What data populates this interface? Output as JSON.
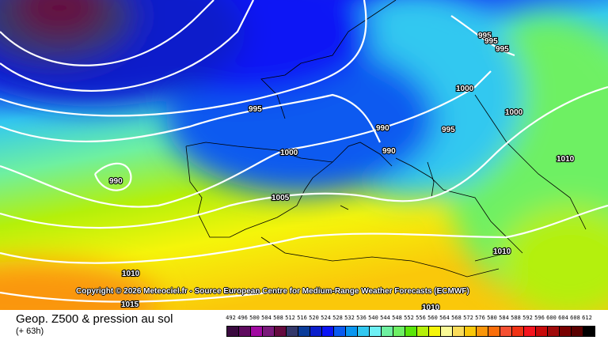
{
  "map": {
    "copyright": "Copyright © 2026 Meteociel.fr - Source European Centre for Medium-Range Weather Forecasts (ECMWF)",
    "isobar_labels": [
      "995",
      "1000",
      "990",
      "1005",
      "1010",
      "1015",
      "990",
      "990",
      "995",
      "1000",
      "1000",
      "995",
      "995",
      "995",
      "1010",
      "1010",
      "1010"
    ]
  },
  "footer": {
    "title": "Geop. Z500 & pression au sol",
    "subtitle": "(+ 63h)"
  },
  "legend": {
    "unit_values": [
      "492",
      "496",
      "500",
      "504",
      "508",
      "512",
      "516",
      "520",
      "524",
      "528",
      "532",
      "536",
      "540",
      "544",
      "548",
      "552",
      "556",
      "560",
      "564",
      "568",
      "572",
      "576",
      "580",
      "584",
      "588",
      "592",
      "596",
      "600",
      "604",
      "608",
      "612"
    ],
    "colors": [
      "#3a0a3f",
      "#5e0a5e",
      "#a10aa1",
      "#7a1a7a",
      "#650a3f",
      "#34386a",
      "#0a3c9a",
      "#0a1ecb",
      "#0a14f5",
      "#0a5af0",
      "#0a96f0",
      "#32c8f0",
      "#6ef0f5",
      "#6ef0a0",
      "#6ef064",
      "#5ae60a",
      "#b4f00a",
      "#f5f50a",
      "#fafa96",
      "#fadc5a",
      "#fac80a",
      "#fa960a",
      "#fa6e0a",
      "#f55032",
      "#f03214",
      "#f5141e",
      "#c80a0a",
      "#a00a0a",
      "#780000",
      "#5a0000",
      "#000000"
    ]
  }
}
